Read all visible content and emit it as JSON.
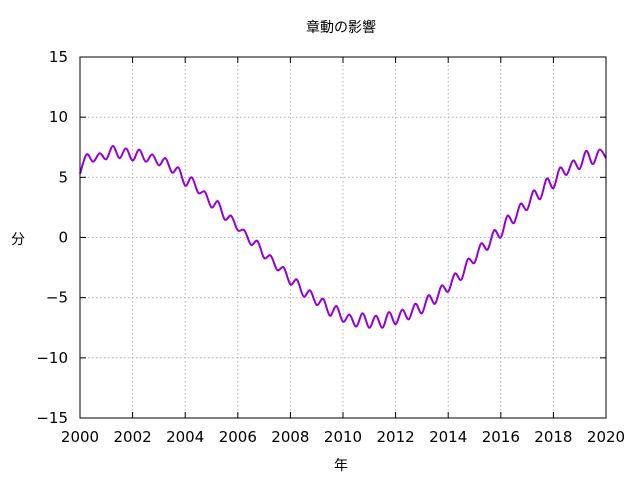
{
  "chart_data": {
    "type": "line",
    "title": "章動の影響",
    "xlabel": "年",
    "ylabel": "分",
    "xlim": [
      2000,
      2020
    ],
    "ylim": [
      -15,
      15
    ],
    "x_ticks": [
      2000,
      2002,
      2004,
      2006,
      2008,
      2010,
      2012,
      2014,
      2016,
      2018,
      2020
    ],
    "y_ticks": [
      -15,
      -10,
      -5,
      0,
      5,
      10,
      15
    ],
    "x_tick_labels": [
      "2000",
      "2002",
      "2004",
      "2006",
      "2008",
      "2010",
      "2012",
      "2014",
      "2016",
      "2018",
      "2020"
    ],
    "y_tick_labels": [
      "−15",
      "−10",
      "−5",
      "0",
      "5",
      "10",
      "15"
    ],
    "grid": true,
    "series": [
      {
        "color": "#9400d3",
        "x": [
          2000.0,
          2000.25,
          2000.5,
          2000.75,
          2001.0,
          2001.25,
          2001.5,
          2001.75,
          2002.0,
          2002.25,
          2002.5,
          2002.75,
          2003.0,
          2003.25,
          2003.5,
          2003.75,
          2004.0,
          2004.25,
          2004.5,
          2004.75,
          2005.0,
          2005.25,
          2005.5,
          2005.75,
          2006.0,
          2006.25,
          2006.5,
          2006.75,
          2007.0,
          2007.25,
          2007.5,
          2007.75,
          2008.0,
          2008.25,
          2008.5,
          2008.75,
          2009.0,
          2009.25,
          2009.5,
          2009.75,
          2010.0,
          2010.25,
          2010.5,
          2010.75,
          2011.0,
          2011.25,
          2011.5,
          2011.75,
          2012.0,
          2012.25,
          2012.5,
          2012.75,
          2013.0,
          2013.25,
          2013.5,
          2013.75,
          2014.0,
          2014.25,
          2014.5,
          2014.75,
          2015.0,
          2015.25,
          2015.5,
          2015.75,
          2016.0,
          2016.25,
          2016.5,
          2016.75,
          2017.0,
          2017.25,
          2017.5,
          2017.75,
          2018.0,
          2018.25,
          2018.5,
          2018.75,
          2019.0,
          2019.25,
          2019.5,
          2019.75,
          2020.0
        ],
        "y": [
          5.3,
          6.9,
          6.3,
          7.0,
          6.5,
          7.6,
          6.6,
          7.4,
          6.4,
          7.3,
          6.3,
          6.9,
          6.0,
          6.6,
          5.4,
          5.8,
          4.3,
          5.0,
          3.7,
          3.8,
          2.5,
          3.0,
          1.5,
          1.8,
          0.6,
          0.6,
          -0.6,
          -0.3,
          -1.7,
          -1.5,
          -2.7,
          -2.5,
          -3.9,
          -3.5,
          -4.9,
          -4.4,
          -5.6,
          -5.1,
          -6.5,
          -5.7,
          -7.0,
          -6.4,
          -7.4,
          -6.3,
          -7.5,
          -6.5,
          -7.5,
          -6.2,
          -7.2,
          -6.0,
          -6.8,
          -5.5,
          -6.3,
          -4.8,
          -5.5,
          -4.0,
          -4.5,
          -3.0,
          -3.5,
          -1.8,
          -2.1,
          -0.5,
          -1.0,
          0.6,
          0.0,
          1.8,
          1.2,
          2.8,
          2.3,
          3.9,
          3.2,
          4.9,
          4.1,
          5.8,
          5.2,
          6.4,
          5.7,
          7.2,
          6.1,
          7.3,
          6.6
        ]
      }
    ]
  }
}
